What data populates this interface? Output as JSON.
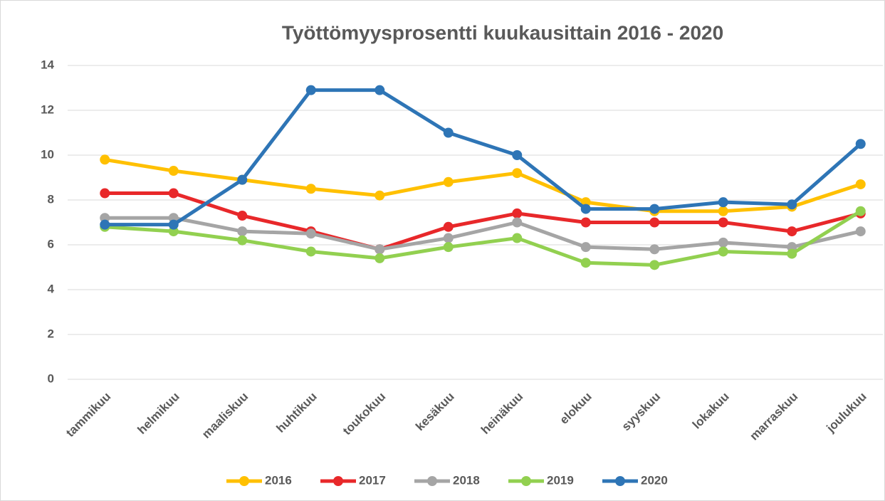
{
  "chart_data": {
    "type": "line",
    "title": "Työttömyysprosentti kuukausittain 2016 - 2020",
    "categories": [
      "tammikuu",
      "helmikuu",
      "maaliskuu",
      "huhtikuu",
      "toukokuu",
      "kesäkuu",
      "heinäkuu",
      "elokuu",
      "syyskuu",
      "lokakuu",
      "marraskuu",
      "joulukuu"
    ],
    "series": [
      {
        "name": "2016",
        "color": "#FFC000",
        "values": [
          9.8,
          9.3,
          8.9,
          8.5,
          8.2,
          8.8,
          9.2,
          7.9,
          7.5,
          7.5,
          7.7,
          8.7
        ]
      },
      {
        "name": "2017",
        "color": "#E8282A",
        "values": [
          8.3,
          8.3,
          7.3,
          6.6,
          5.8,
          6.8,
          7.4,
          7.0,
          7.0,
          7.0,
          6.6,
          7.4
        ]
      },
      {
        "name": "2018",
        "color": "#A5A5A5",
        "values": [
          7.2,
          7.2,
          6.6,
          6.5,
          5.8,
          6.3,
          7.0,
          5.9,
          5.8,
          6.1,
          5.9,
          6.6
        ]
      },
      {
        "name": "2019",
        "color": "#92D050",
        "values": [
          6.8,
          6.6,
          6.2,
          5.7,
          5.4,
          5.9,
          6.3,
          5.2,
          5.1,
          5.7,
          5.6,
          7.5
        ]
      },
      {
        "name": "2020",
        "color": "#2E75B6",
        "values": [
          6.9,
          6.9,
          8.9,
          12.9,
          12.9,
          11.0,
          10.0,
          7.6,
          7.6,
          7.9,
          7.8,
          10.5
        ]
      }
    ],
    "ylim": [
      0,
      14
    ],
    "yticks": [
      0,
      2,
      4,
      6,
      8,
      10,
      12,
      14
    ],
    "grid": true,
    "legend": "bottom"
  }
}
